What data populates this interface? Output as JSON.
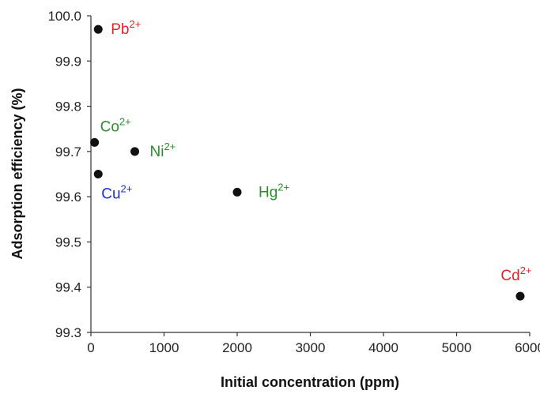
{
  "chart_data": {
    "type": "scatter",
    "title": "",
    "xlabel": "Initial concentration (ppm)",
    "ylabel": "Adsorption efficiency (%)",
    "xlim": [
      0,
      6000
    ],
    "ylim": [
      99.3,
      100.0
    ],
    "xticks": [
      "0",
      "1000",
      "2000",
      "3000",
      "4000",
      "5000",
      "6000"
    ],
    "yticks": [
      "99.3",
      "99.4",
      "99.5",
      "99.6",
      "99.7",
      "99.8",
      "99.9",
      "100.0"
    ],
    "grid": false,
    "points": [
      {
        "ion": "Pb",
        "charge": "2+",
        "x": 100,
        "y": 99.97,
        "color": "#e8202a"
      },
      {
        "ion": "Co",
        "charge": "2+",
        "x": 50,
        "y": 99.72,
        "color": "#2e8b2e"
      },
      {
        "ion": "Ni",
        "charge": "2+",
        "x": 600,
        "y": 99.7,
        "color": "#2e8b2e"
      },
      {
        "ion": "Cu",
        "charge": "2+",
        "x": 100,
        "y": 99.65,
        "color": "#1f2fd0"
      },
      {
        "ion": "Hg",
        "charge": "2+",
        "x": 2000,
        "y": 99.61,
        "color": "#2e8b2e"
      },
      {
        "ion": "Cd",
        "charge": "2+",
        "x": 5870,
        "y": 99.38,
        "color": "#e8202a"
      }
    ]
  }
}
